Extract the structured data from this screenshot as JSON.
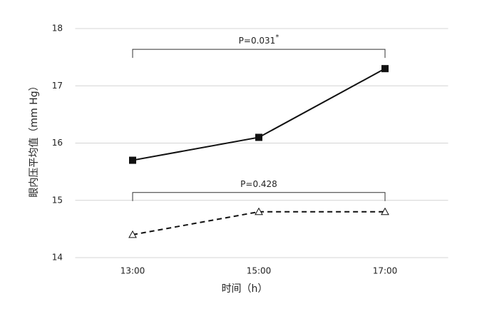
{
  "chart_data": {
    "type": "line",
    "y_label": "眼内压平均值（mm Hg）",
    "x_label": "时间（h）",
    "categories": [
      "13:00",
      "15:00",
      "17:00"
    ],
    "series": [
      {
        "color": "#111111",
        "marker": "square",
        "dash": "solid",
        "values": [
          15.7,
          16.1,
          17.3
        ]
      },
      {
        "color": "#111111",
        "marker": "triangle",
        "dash": "dashed",
        "values": [
          14.4,
          14.8,
          14.8
        ]
      }
    ],
    "annotations": [
      {
        "series": 0,
        "text": "P=0.031",
        "sup": "*"
      },
      {
        "series": 1,
        "text": "P=0.428"
      }
    ],
    "ylim": [
      14,
      18
    ],
    "yticks": [
      14,
      15,
      16,
      17,
      18
    ],
    "grid": true
  }
}
